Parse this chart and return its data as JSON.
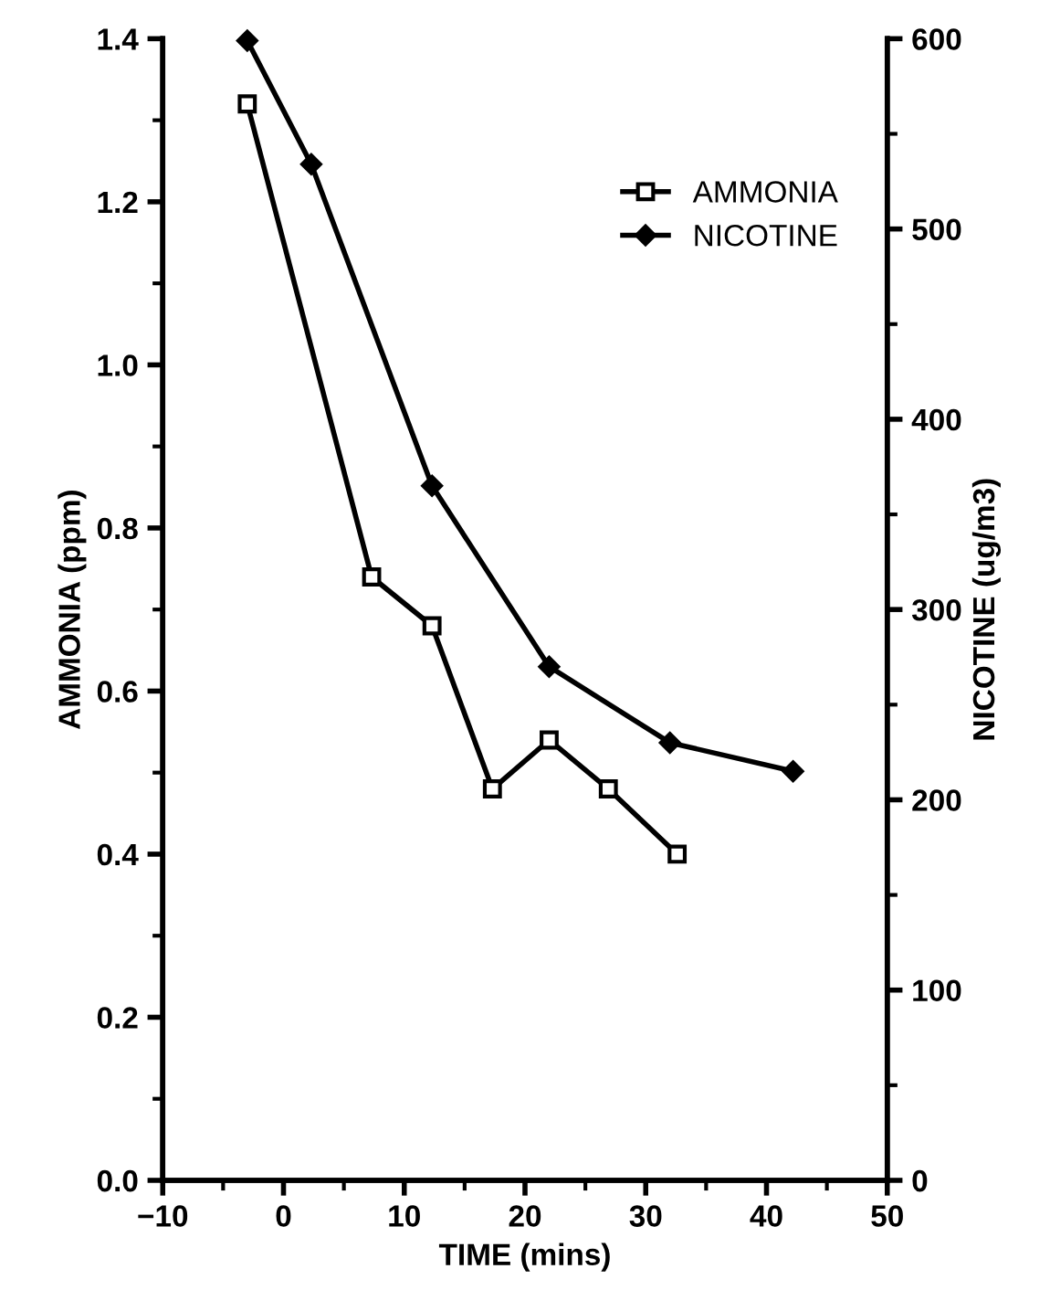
{
  "chart_data": {
    "type": "line",
    "xlabel": "TIME (mins)",
    "ylabel": "AMMONIA (ppm)",
    "y2label": "NICOTINE (ug/m3)",
    "xlim": [
      -10,
      50
    ],
    "xticks": [
      {
        "value": -10,
        "label": "−10"
      },
      0,
      10,
      20,
      30,
      40,
      50
    ],
    "ylim": [
      0,
      1.4
    ],
    "yticks": [
      {
        "value": 0,
        "label": "0.0"
      },
      {
        "value": 0.2,
        "label": "0.2"
      },
      {
        "value": 0.4,
        "label": "0.4"
      },
      {
        "value": 0.6,
        "label": "0.6"
      },
      {
        "value": 0.8,
        "label": "0.8"
      },
      {
        "value": 1.0,
        "label": "1.0"
      },
      {
        "value": 1.2,
        "label": "1.2"
      },
      {
        "value": 1.4,
        "label": "1.4"
      }
    ],
    "y2lim": [
      0,
      600
    ],
    "y2ticks": [
      0,
      100,
      200,
      300,
      400,
      500,
      600
    ],
    "legend": "top right",
    "grid": false,
    "line_style": "solid",
    "series": [
      {
        "name": "AMMONIA",
        "color": "#000000",
        "marker": "square",
        "x": [
          -3,
          7.3,
          12.3,
          17.3,
          22,
          26.9,
          32.6
        ],
        "values": [
          1.32,
          0.74,
          0.68,
          0.48,
          0.54,
          0.48,
          0.4
        ]
      },
      {
        "name": "NICOTINE",
        "color": "#000000",
        "marker": "diamond",
        "axis": "y2",
        "x": [
          -3,
          2.3,
          12.3,
          22,
          32,
          42.2
        ],
        "values": [
          599,
          534,
          365,
          270,
          230,
          215
        ]
      }
    ]
  }
}
